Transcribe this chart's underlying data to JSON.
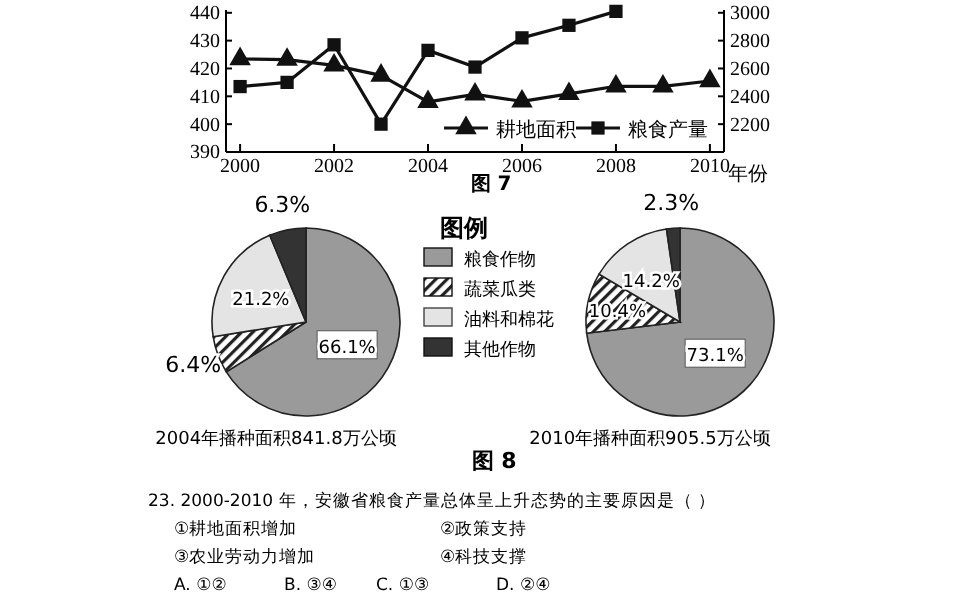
{
  "chart_data": [
    {
      "type": "line",
      "title": "图 7",
      "xlabel": "年份",
      "x": [
        2000,
        2001,
        2002,
        2003,
        2004,
        2005,
        2006,
        2007,
        2008,
        2009,
        2010
      ],
      "xlim": [
        1999.7,
        2010.3
      ],
      "xticks": [
        2000,
        2002,
        2004,
        2006,
        2008,
        2010
      ],
      "ylim": [
        390,
        441
      ],
      "yticks": [
        390,
        400,
        410,
        420,
        430,
        440
      ],
      "y2lim": [
        2000,
        3020
      ],
      "y2ticks": [
        2200,
        2400,
        2600,
        2800,
        3000
      ],
      "legend": "bottom right",
      "grid": false,
      "series": [
        {
          "name": "耕地面积",
          "color": "#111111",
          "marker": "triangle",
          "values": [
            423.4,
            423.2,
            421.1,
            417.5,
            408,
            410.7,
            408.2,
            410.9,
            413.6,
            413.6,
            415.5
          ]
        },
        {
          "name": "粮食产量",
          "color": "#111111",
          "marker": "square",
          "axis": "y2",
          "values": [
            2470,
            2500,
            2770,
            2200,
            2730,
            2610,
            2820,
            2910,
            3010,
            null,
            null
          ]
        }
      ]
    },
    {
      "type": "pie",
      "xlabel": "2004年播种面积841.8万公顷",
      "legend_title": "图例",
      "legend": "right",
      "categories": [
        "粮食作物",
        "蔬菜瓜类",
        "油料和棉花",
        "其他作物"
      ],
      "values": [
        66.1,
        6.4,
        21.2,
        6.3
      ],
      "value_labels": [
        "66.1%",
        "6.4%",
        "21.2%",
        "6.3%"
      ],
      "colors": [
        "#9a9a9a",
        "#222222",
        "#e4e4e4",
        "#333333"
      ]
    },
    {
      "type": "pie",
      "xlabel": "2010年播种面积905.5万公顷",
      "categories": [
        null,
        null,
        null,
        null
      ],
      "values": [
        73.1,
        10.4,
        14.2,
        2.3
      ],
      "value_labels": [
        "73.1%",
        "10.4%",
        "14.2%",
        "2.3%"
      ],
      "colors": [
        "#9a9a9a",
        "#222222",
        "#e4e4e4",
        "#333333"
      ]
    },
    {
      "type": "other",
      "annotations": [
        "图 8",
        "23. 2000-2010 年，安徽省粮食产量总体呈上升态势的主要原因是（    ）",
        "①耕地面积增加",
        "②政策支持",
        "③农业劳动力增加",
        "④科技支撑",
        "A. ①②",
        "B. ③④",
        "C. ①③",
        "D. ②④"
      ]
    }
  ]
}
